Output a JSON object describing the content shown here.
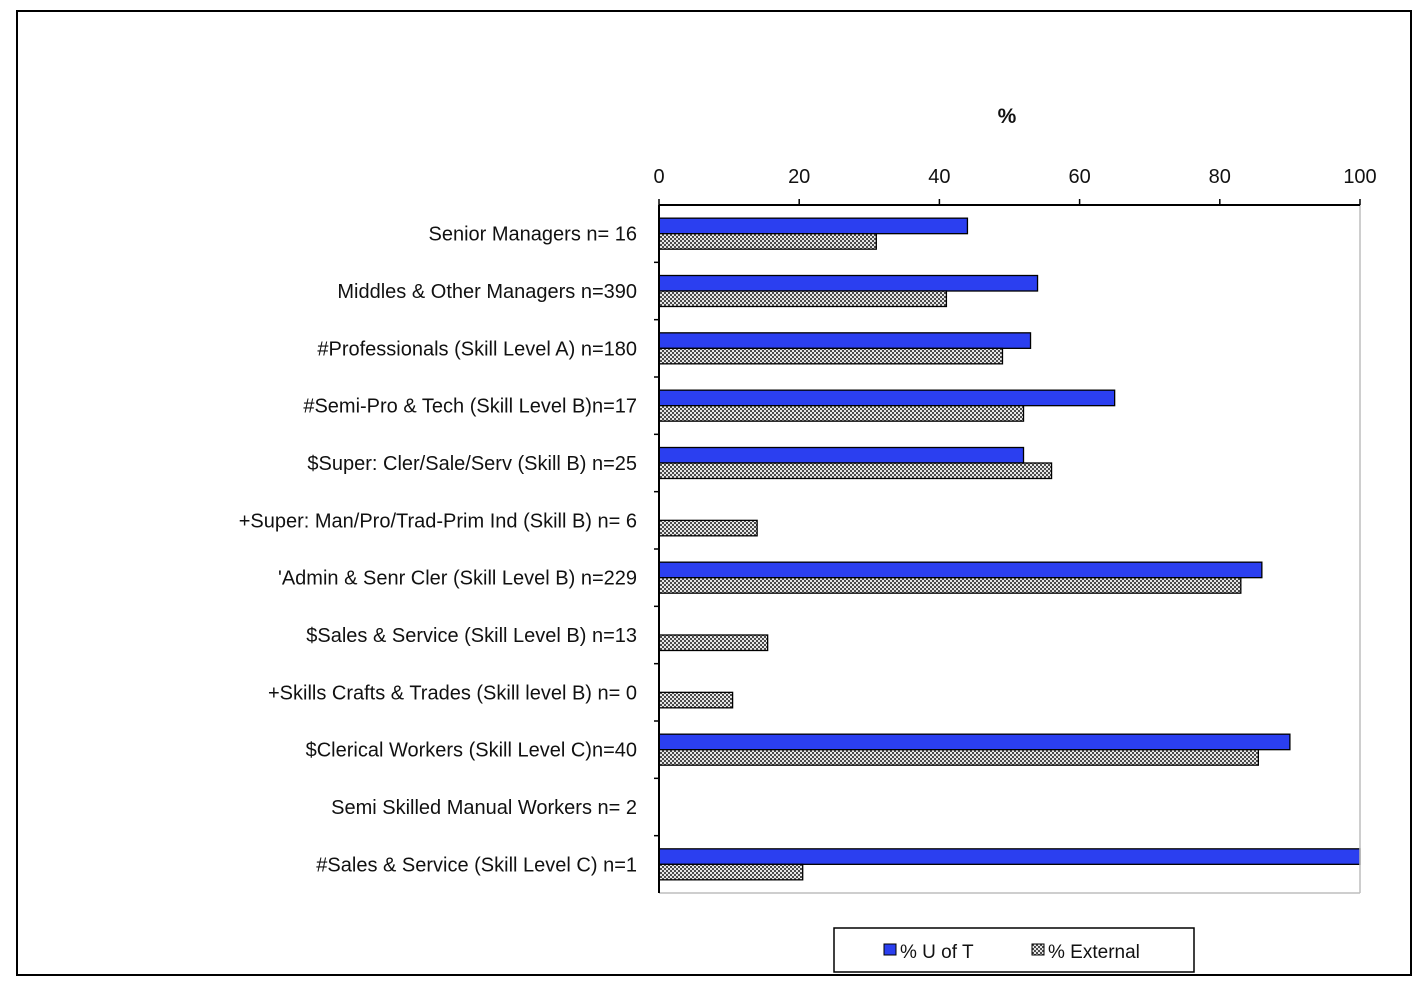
{
  "chart_data": {
    "type": "bar",
    "orientation": "horizontal",
    "xlabel": "%",
    "xlim": [
      0,
      100
    ],
    "xticks": [
      0,
      20,
      40,
      60,
      80,
      100
    ],
    "grid": false,
    "legend_position": "bottom",
    "categories": [
      "Senior Managers n= 16",
      "Middles & Other Managers n=390",
      "#Professionals (Skill Level A) n=180",
      "#Semi-Pro & Tech (Skill Level B)n=17",
      "$Super: Cler/Sale/Serv (Skill B) n=25",
      "+Super: Man/Pro/Trad-Prim Ind (Skill B) n= 6",
      "'Admin & Senr Cler (Skill Level B) n=229",
      "$Sales & Service (Skill Level B) n=13",
      "+Skills Crafts & Trades (Skill level B) n= 0",
      "$Clerical Workers (Skill Level C)n=40",
      "Semi Skilled Manual Workers n= 2",
      "#Sales & Service (Skill Level C) n=1"
    ],
    "series": [
      {
        "name": "% U of T",
        "color": "#2b3ff0",
        "values": [
          44,
          54,
          53,
          65,
          52,
          0,
          86,
          0,
          0,
          90,
          0,
          100
        ]
      },
      {
        "name": "% External",
        "color": "#9a9a9a",
        "values": [
          31,
          41,
          49,
          52,
          56,
          14,
          83,
          15.5,
          10.5,
          85.5,
          0,
          20.5
        ]
      }
    ]
  }
}
